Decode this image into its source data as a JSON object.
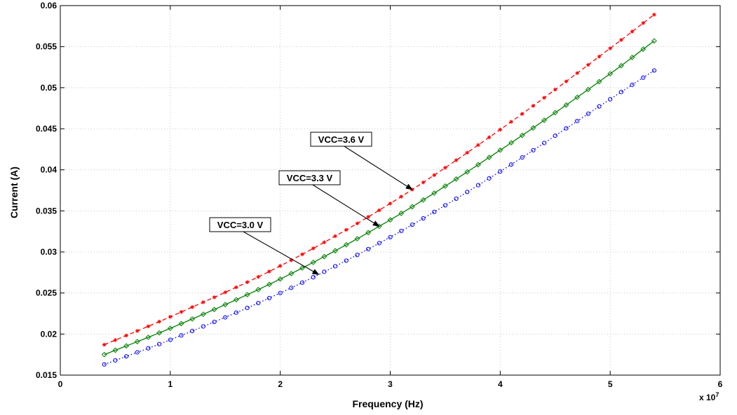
{
  "chart_data": {
    "type": "line",
    "title": "",
    "xlabel": "Frequency (Hz)",
    "ylabel": "Current (A)",
    "x_exponent_label": "x 10",
    "x_exponent_power": "7",
    "xlim": [
      0,
      6
    ],
    "ylim": [
      0.015,
      0.06
    ],
    "xticks": [
      0,
      1,
      2,
      3,
      4,
      5,
      6
    ],
    "xtick_labels": [
      "0",
      "1",
      "2",
      "3",
      "4",
      "5",
      "6"
    ],
    "yticks": [
      0.015,
      0.02,
      0.025,
      0.03,
      0.035,
      0.04,
      0.045,
      0.05,
      0.055,
      0.06
    ],
    "ytick_labels": [
      "0.015",
      "0.02",
      "0.025",
      "0.03",
      "0.035",
      "0.04",
      "0.045",
      "0.05",
      "0.055",
      "0.06"
    ],
    "grid": true,
    "x_sample": {
      "start": 0.4,
      "end": 5.4,
      "step": 0.1
    },
    "series": [
      {
        "name": "VCC=3.6 V",
        "color": "#ff0000",
        "line_style": "dashed",
        "marker": "asterisk",
        "x": [
          0.4,
          1,
          2,
          3,
          4,
          5,
          5.4
        ],
        "y": [
          0.0187,
          0.0221,
          0.0283,
          0.0359,
          0.0449,
          0.0548,
          0.0589
        ]
      },
      {
        "name": "VCC=3.3 V",
        "color": "#008000",
        "line_style": "solid",
        "marker": "diamond",
        "x": [
          0.4,
          1,
          2,
          3,
          4,
          5,
          5.4
        ],
        "y": [
          0.0175,
          0.0207,
          0.0267,
          0.0339,
          0.0424,
          0.0517,
          0.0557
        ]
      },
      {
        "name": "VCC=3.0 V",
        "color": "#0000ff",
        "line_style": "dotted",
        "marker": "circle",
        "x": [
          0.4,
          1,
          2,
          3,
          4,
          5,
          5.4
        ],
        "y": [
          0.0163,
          0.0193,
          0.025,
          0.0318,
          0.0398,
          0.0486,
          0.0521
        ]
      }
    ],
    "annotations": [
      {
        "text": "VCC=3.6 V",
        "series": "VCC=3.6 V",
        "point_x": 3.2
      },
      {
        "text": "VCC=3.3 V",
        "series": "VCC=3.3 V",
        "point_x": 2.9
      },
      {
        "text": "VCC=3.0 V",
        "series": "VCC=3.0 V",
        "point_x": 2.35
      }
    ]
  }
}
